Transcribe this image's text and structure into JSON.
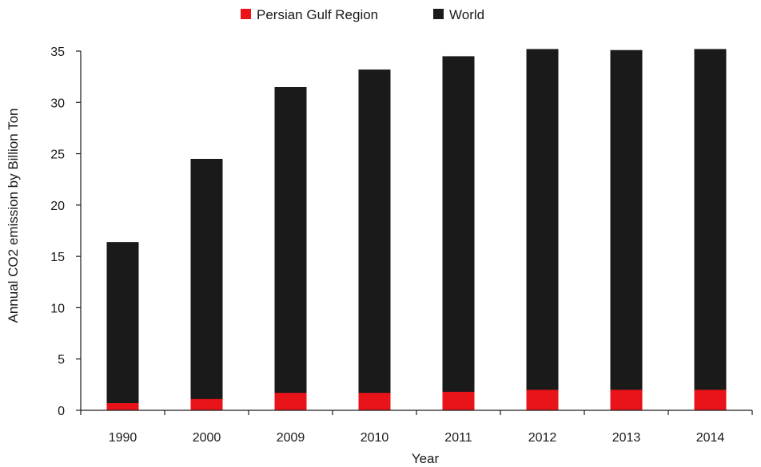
{
  "chart_data": {
    "type": "bar",
    "stacked": true,
    "title": "",
    "xlabel": "Year",
    "ylabel": "Annual CO2 emission by Billion Ton",
    "categories": [
      "1990",
      "2000",
      "2009",
      "2010",
      "2011",
      "2012",
      "2013",
      "2014"
    ],
    "series": [
      {
        "name": "Persian Gulf Region",
        "color": "#e8141a",
        "values": [
          0.7,
          1.1,
          1.7,
          1.7,
          1.8,
          2.0,
          2.0,
          2.0
        ]
      },
      {
        "name": "World",
        "color": "#1a1a1a",
        "values": [
          16.4,
          24.5,
          31.5,
          33.2,
          34.5,
          35.2,
          35.1,
          35.2
        ]
      }
    ],
    "ylim": [
      0,
      35
    ],
    "yticks": [
      "0",
      "5",
      "10",
      "15",
      "20",
      "25",
      "30",
      "35"
    ],
    "grid": false,
    "legend_position": "top-center"
  }
}
